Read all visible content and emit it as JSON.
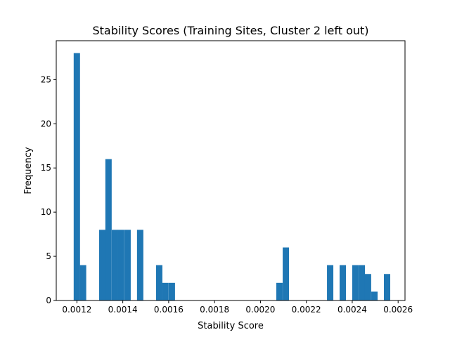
{
  "chart_data": {
    "type": "bar",
    "title": "Stability Scores (Training Sites, Cluster 2 left out)",
    "xlabel": "Stability Score",
    "ylabel": "Frequency",
    "xlim": [
      0.00111,
      0.00263
    ],
    "ylim": [
      0,
      29.4
    ],
    "bin_width": 2.76e-05,
    "bar_color": "#1f77b4",
    "grid": false,
    "xticks": [
      0.0012,
      0.0014,
      0.0016,
      0.0018,
      0.002,
      0.0022,
      0.0024,
      0.0026
    ],
    "xtick_labels": [
      "0.0012",
      "0.0014",
      "0.0016",
      "0.0018",
      "0.0020",
      "0.0022",
      "0.0024",
      "0.0026"
    ],
    "yticks": [
      0,
      5,
      10,
      15,
      20,
      25
    ],
    "ytick_labels": [
      "0",
      "5",
      "10",
      "15",
      "20",
      "25"
    ],
    "bins": [
      {
        "x": 0.001186,
        "count": 28
      },
      {
        "x": 0.001213,
        "count": 4
      },
      {
        "x": 0.001297,
        "count": 8
      },
      {
        "x": 0.001324,
        "count": 16
      },
      {
        "x": 0.001352,
        "count": 8
      },
      {
        "x": 0.001379,
        "count": 8
      },
      {
        "x": 0.001407,
        "count": 8
      },
      {
        "x": 0.001462,
        "count": 8
      },
      {
        "x": 0.001545,
        "count": 4
      },
      {
        "x": 0.001572,
        "count": 2
      },
      {
        "x": 0.0016,
        "count": 2
      },
      {
        "x": 0.002069,
        "count": 2
      },
      {
        "x": 0.002097,
        "count": 6
      },
      {
        "x": 0.00229,
        "count": 4
      },
      {
        "x": 0.002345,
        "count": 4
      },
      {
        "x": 0.0024,
        "count": 4
      },
      {
        "x": 0.002428,
        "count": 4
      },
      {
        "x": 0.002455,
        "count": 3
      },
      {
        "x": 0.002483,
        "count": 1
      },
      {
        "x": 0.002538,
        "count": 3
      }
    ]
  }
}
